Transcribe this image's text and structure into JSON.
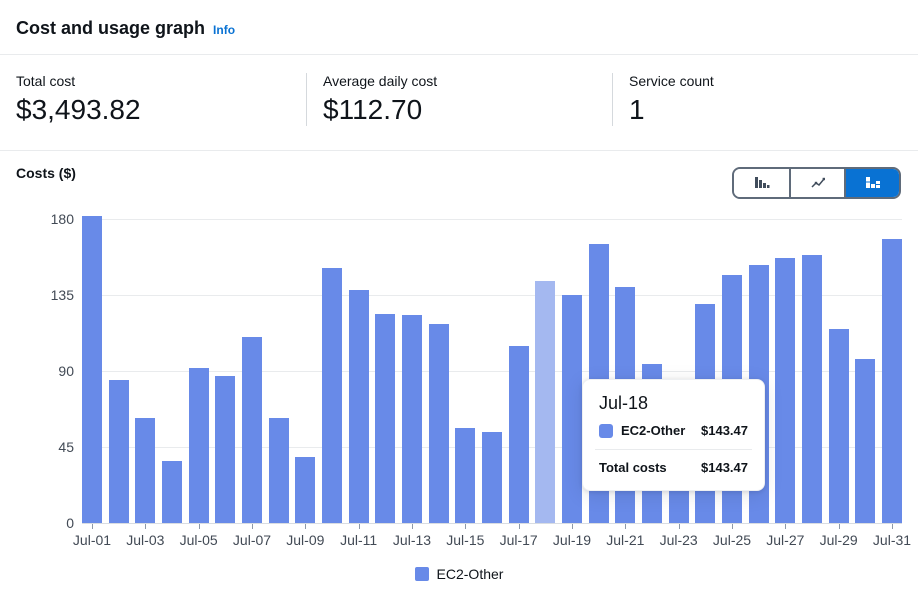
{
  "header": {
    "title": "Cost and usage graph",
    "info_label": "Info"
  },
  "stats": [
    {
      "label": "Total cost",
      "value": "$3,493.82"
    },
    {
      "label": "Average daily cost",
      "value": "$112.70"
    },
    {
      "label": "Service count",
      "value": "1"
    }
  ],
  "chart": {
    "axis_title": "Costs ($)",
    "legend_label": "EC2-Other",
    "highlighted_category": "Jul-18",
    "colors": {
      "bar": "#688ae8",
      "bar_highlight": "#a4b8f0",
      "active_toggle": "#0972d3"
    }
  },
  "toolbar": {
    "chart_types": [
      {
        "name": "bar",
        "active": false
      },
      {
        "name": "line",
        "active": false
      },
      {
        "name": "stacked-bar",
        "active": true
      }
    ]
  },
  "tooltip": {
    "title": "Jul-18",
    "series_label": "EC2-Other",
    "series_value": "$143.47",
    "total_label": "Total costs",
    "total_value": "$143.47"
  },
  "chart_data": {
    "type": "bar",
    "title": "Cost and usage graph",
    "xlabel": "",
    "ylabel": "Costs ($)",
    "categories": [
      "Jul-01",
      "Jul-02",
      "Jul-03",
      "Jul-04",
      "Jul-05",
      "Jul-06",
      "Jul-07",
      "Jul-08",
      "Jul-09",
      "Jul-10",
      "Jul-11",
      "Jul-12",
      "Jul-13",
      "Jul-14",
      "Jul-15",
      "Jul-16",
      "Jul-17",
      "Jul-18",
      "Jul-19",
      "Jul-20",
      "Jul-21",
      "Jul-22",
      "Jul-23",
      "Jul-24",
      "Jul-25",
      "Jul-26",
      "Jul-27",
      "Jul-28",
      "Jul-29",
      "Jul-30",
      "Jul-31"
    ],
    "series": [
      {
        "name": "EC2-Other",
        "values": [
          182,
          85,
          62,
          37,
          92,
          87,
          110,
          62,
          39,
          151,
          138,
          124,
          123,
          118,
          56,
          54,
          105,
          143.47,
          135,
          165,
          140,
          94,
          60,
          130,
          147,
          153,
          157,
          159,
          115,
          97,
          168
        ]
      }
    ],
    "y_ticks": [
      180,
      135,
      90,
      45,
      0
    ],
    "ylim": [
      0,
      180
    ],
    "x_tick_label_every": 2,
    "grid": "horizontal",
    "legend_position": "bottom"
  }
}
